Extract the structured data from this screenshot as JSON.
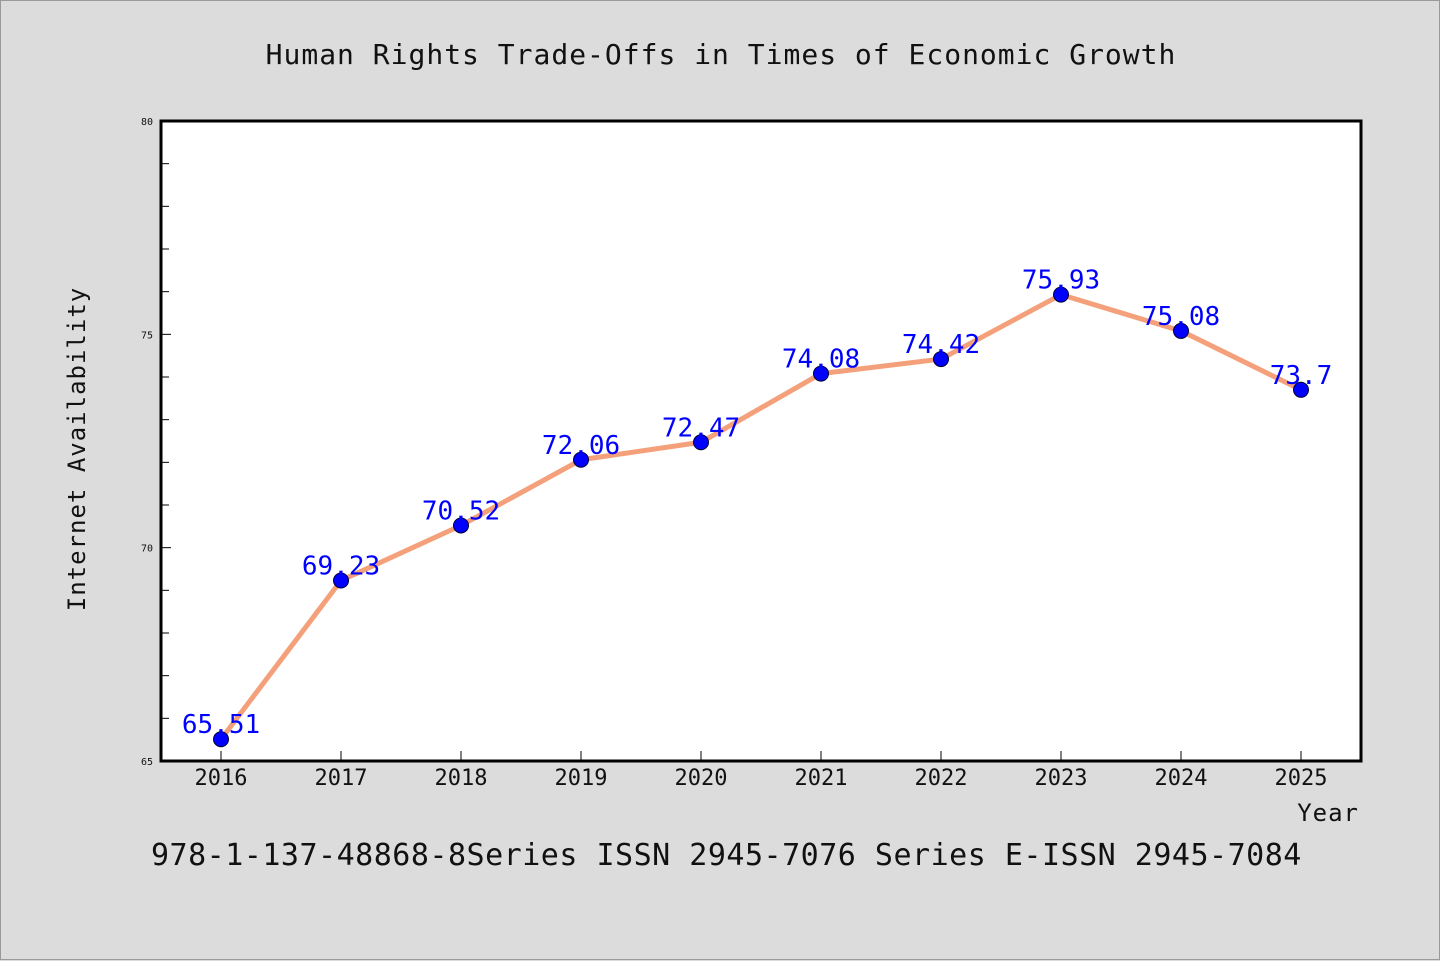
{
  "chart_data": {
    "type": "line",
    "title": "Human Rights Trade-Offs in Times of Economic Growth",
    "xlabel": "Year",
    "ylabel": "Internet Availability",
    "categories": [
      "2016",
      "2017",
      "2018",
      "2019",
      "2020",
      "2021",
      "2022",
      "2023",
      "2024",
      "2025"
    ],
    "series": [
      {
        "values": [
          65.51,
          69.23,
          70.52,
          72.06,
          72.47,
          74.08,
          74.42,
          75.93,
          75.08,
          73.7
        ],
        "labels": [
          "65.51",
          "69.23",
          "70.52",
          "72.06",
          "72.47",
          "74.08",
          "74.42",
          "75.93",
          "75.08",
          "73.7"
        ],
        "line_color": "#f4a07a",
        "marker_color": "#0000ff"
      }
    ],
    "ylim": [
      65,
      80
    ],
    "yticks": [
      "65",
      "70",
      "75",
      "80"
    ],
    "grid": false,
    "legend": false
  },
  "caption": "978-1-137-48868-8Series ISSN 2945-7076 Series E-ISSN 2945-7084",
  "colors": {
    "background": "#dcdcdc",
    "plot_background": "#ffffff",
    "label_color": "#0000ff",
    "line_color": "#f4a07a"
  }
}
